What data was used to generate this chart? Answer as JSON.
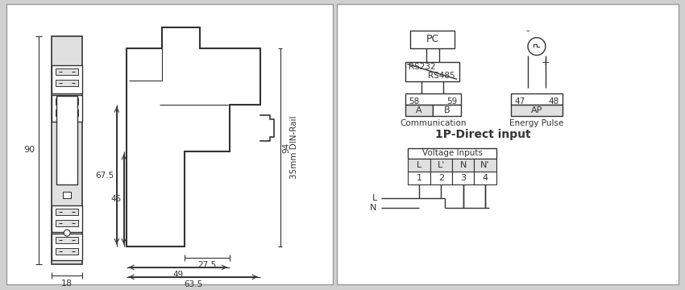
{
  "bg_color": "#d0d0d0",
  "panel_color": "#ffffff",
  "line_color": "#333333",
  "gray_fill": "#c0c0c0",
  "light_gray": "#e0e0e0",
  "title": "1P-Direct input",
  "dim_18": "18",
  "dim_90": "90",
  "dim_67_5": "67.5",
  "dim_45": "45",
  "dim_94": "94",
  "dim_27_5": "27.5",
  "dim_49": "49",
  "dim_63_5": "63.5",
  "din_rail_label": "35mm DIN-Rail",
  "pc_label": "PC",
  "rs232_label": "RS232",
  "rs485_label": "RS485",
  "comm_label": "Communication",
  "ep_label": "Energy Pulse",
  "title_label": "1P-Direct input",
  "vi_label": "Voltage Inputs"
}
